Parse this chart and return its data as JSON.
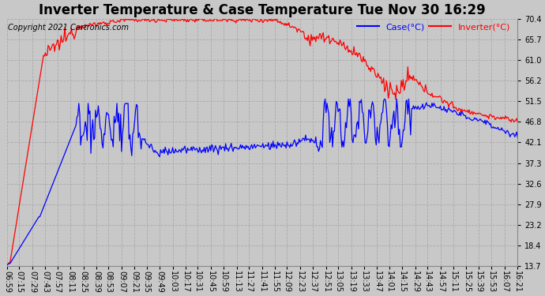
{
  "title": "Inverter Temperature & Case Temperature Tue Nov 30 16:29",
  "copyright": "Copyright 2021 Cartronics.com",
  "legend_labels": [
    "Case(°C)",
    "Inverter(°C)"
  ],
  "legend_colors": [
    "blue",
    "red"
  ],
  "case_color": "blue",
  "inverter_color": "red",
  "background_color": "#c8c8c8",
  "plot_bg_color": "#c8c8c8",
  "yticks": [
    13.7,
    18.4,
    23.2,
    27.9,
    32.6,
    37.3,
    42.1,
    46.8,
    51.5,
    56.2,
    61.0,
    65.7,
    70.4
  ],
  "ylim": [
    13.7,
    70.4
  ],
  "grid_color": "#aaaaaa",
  "title_fontsize": 12,
  "tick_fontsize": 7,
  "copyright_fontsize": 7,
  "legend_fontsize": 8,
  "line_width": 0.9,
  "x_labels": [
    "06:59",
    "07:15",
    "07:29",
    "07:43",
    "07:57",
    "08:11",
    "08:25",
    "08:39",
    "08:53",
    "09:07",
    "09:21",
    "09:35",
    "09:49",
    "10:03",
    "10:17",
    "10:31",
    "10:45",
    "10:59",
    "11:13",
    "11:27",
    "11:41",
    "11:55",
    "12:09",
    "12:23",
    "12:37",
    "12:51",
    "13:05",
    "13:19",
    "13:33",
    "13:47",
    "14:01",
    "14:15",
    "14:29",
    "14:43",
    "14:57",
    "15:11",
    "15:25",
    "15:39",
    "15:53",
    "16:07",
    "16:21"
  ]
}
